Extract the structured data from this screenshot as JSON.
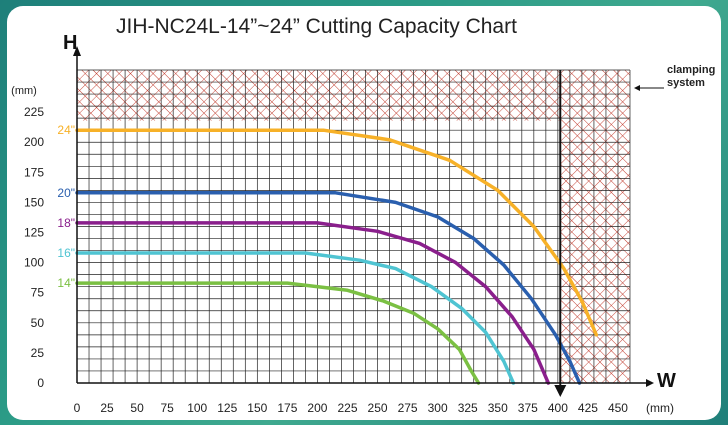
{
  "page": {
    "title": "JIH-NC24L-14”~24”  Cutting Capacity Chart",
    "h_axis_letter": "H",
    "w_axis_letter": "W",
    "y_unit": "(mm)",
    "x_unit": "(mm)",
    "clamping_label_line1": "clamping",
    "clamping_label_line2": "system"
  },
  "colors": {
    "background": "#2a9a86",
    "grid": "#1a1a1a",
    "hatch": "#c0392b",
    "series_24": "#f7b128",
    "series_20": "#2a5fae",
    "series_18": "#8a1f8c",
    "series_16": "#4fc4d2",
    "series_14": "#7bc043"
  },
  "chart_data": {
    "type": "line",
    "title": "JIH-NC24L-14”~24”  Cutting Capacity Chart",
    "xlabel": "W",
    "ylabel": "H",
    "x_unit": "(mm)",
    "y_unit": "(mm)",
    "xlim": [
      0,
      460
    ],
    "ylim": [
      0,
      260
    ],
    "x_ticks": [
      "0",
      "25",
      "50",
      "75",
      "100",
      "125",
      "150",
      "175",
      "200",
      "225",
      "250",
      "275",
      "300",
      "325",
      "350",
      "375",
      "400",
      "425",
      "450"
    ],
    "y_ticks": [
      "0",
      "25",
      "50",
      "75",
      "100",
      "125",
      "150",
      "175",
      "200",
      "225"
    ],
    "grid": true,
    "hatched_regions": [
      {
        "name": "clamping system",
        "x": [
          0,
          460
        ],
        "y": [
          218,
          260
        ]
      },
      {
        "name": "clamping system",
        "x": [
          402,
          460
        ],
        "y": [
          0,
          260
        ]
      }
    ],
    "vertical_limit_x": 402,
    "series": [
      {
        "name": "24\"",
        "color": "#f7b128",
        "points": [
          [
            0,
            210
          ],
          [
            205,
            210
          ],
          [
            260,
            202
          ],
          [
            310,
            185
          ],
          [
            350,
            160
          ],
          [
            380,
            130
          ],
          [
            405,
            95
          ],
          [
            420,
            68
          ],
          [
            432,
            40
          ]
        ]
      },
      {
        "name": "20\"",
        "color": "#2a5fae",
        "points": [
          [
            0,
            158
          ],
          [
            215,
            158
          ],
          [
            265,
            150
          ],
          [
            300,
            138
          ],
          [
            330,
            120
          ],
          [
            355,
            98
          ],
          [
            378,
            70
          ],
          [
            398,
            40
          ],
          [
            410,
            18
          ],
          [
            418,
            0
          ]
        ]
      },
      {
        "name": "18\"",
        "color": "#8a1f8c",
        "points": [
          [
            0,
            133
          ],
          [
            200,
            133
          ],
          [
            250,
            126
          ],
          [
            285,
            116
          ],
          [
            315,
            100
          ],
          [
            340,
            80
          ],
          [
            362,
            55
          ],
          [
            380,
            28
          ],
          [
            392,
            0
          ]
        ]
      },
      {
        "name": "16\"",
        "color": "#4fc4d2",
        "points": [
          [
            0,
            108
          ],
          [
            190,
            108
          ],
          [
            235,
            102
          ],
          [
            265,
            95
          ],
          [
            295,
            80
          ],
          [
            320,
            62
          ],
          [
            340,
            42
          ],
          [
            355,
            18
          ],
          [
            363,
            0
          ]
        ]
      },
      {
        "name": "14\"",
        "color": "#7bc043",
        "points": [
          [
            0,
            83
          ],
          [
            175,
            83
          ],
          [
            225,
            77
          ],
          [
            255,
            68
          ],
          [
            280,
            58
          ],
          [
            300,
            45
          ],
          [
            318,
            28
          ],
          [
            328,
            10
          ],
          [
            334,
            0
          ]
        ]
      }
    ]
  }
}
